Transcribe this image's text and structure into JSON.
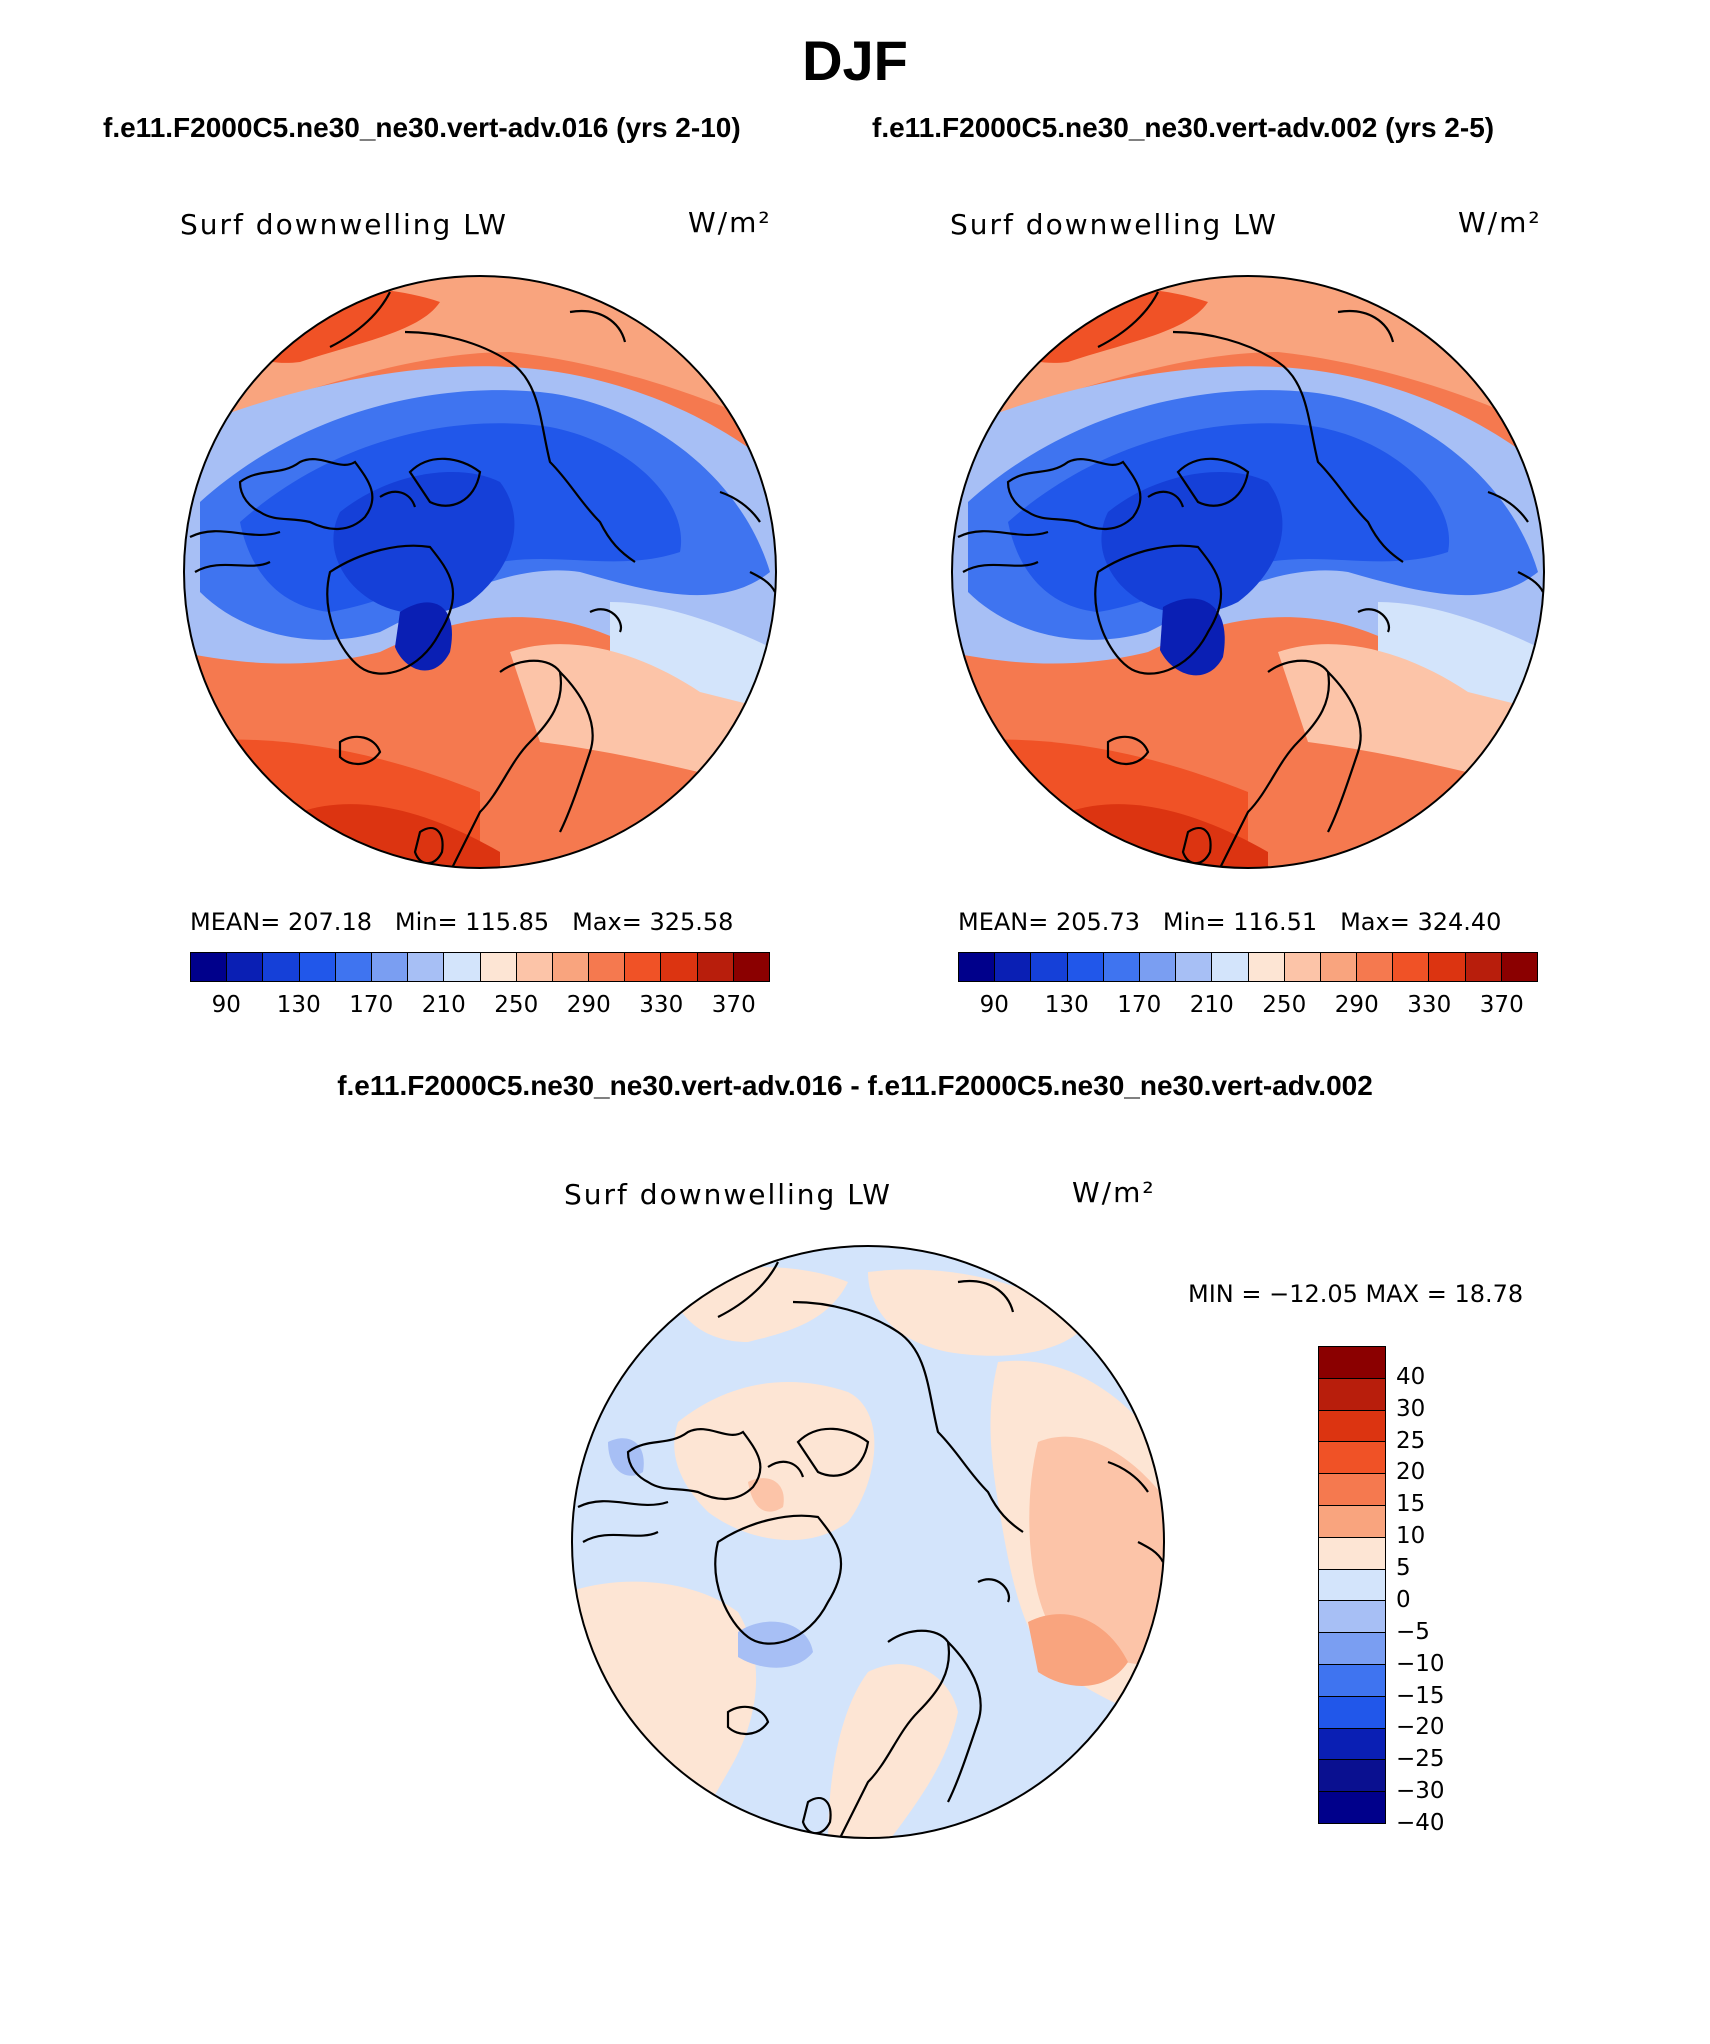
{
  "season": "DJF",
  "panels": [
    {
      "case_title": "f.e11.F2000C5.ne30_ne30.vert-adv.016 (yrs 2-10)",
      "variable": "Surf downwelling LW",
      "units": "W/m²",
      "mean_label": "MEAN=",
      "mean_value": "207.18",
      "min_label": "Min=",
      "min_value": "115.85",
      "max_label": "Max=",
      "max_value": "325.58"
    },
    {
      "case_title": "f.e11.F2000C5.ne30_ne30.vert-adv.002 (yrs 2-5)",
      "variable": "Surf downwelling LW",
      "units": "W/m²",
      "mean_label": "MEAN=",
      "mean_value": "205.73",
      "min_label": "Min=",
      "min_value": "116.51",
      "max_label": "Max=",
      "max_value": "324.40"
    }
  ],
  "diff_panel": {
    "title": "f.e11.F2000C5.ne30_ne30.vert-adv.016 - f.e11.F2000C5.ne30_ne30.vert-adv.002",
    "variable": "Surf downwelling LW",
    "units": "W/m²",
    "minmax_text": "MIN = −12.05 MAX =   18.78"
  },
  "colorbar_main": {
    "colors": [
      "#00008b",
      "#0a1fb4",
      "#1540d8",
      "#2157ea",
      "#3f74f0",
      "#7a9ef2",
      "#a7bff5",
      "#d3e4fb",
      "#fde5d4",
      "#fcc4a8",
      "#f9a47e",
      "#f5794f",
      "#f05226",
      "#dc3411",
      "#b81e0c",
      "#8b0000"
    ],
    "labels": [
      "90",
      "130",
      "170",
      "210",
      "250",
      "290",
      "330",
      "370"
    ]
  },
  "colorbar_diff": {
    "colors": [
      "#8b0000",
      "#b81e0c",
      "#dc3411",
      "#f05226",
      "#f5794f",
      "#f9a47e",
      "#fde5d4",
      "#d3e4fb",
      "#a7bff5",
      "#7a9ef2",
      "#3f74f0",
      "#2157ea",
      "#0a1fb4",
      "#0a1090",
      "#00008b"
    ],
    "labels": [
      "40",
      "30",
      "25",
      "20",
      "15",
      "10",
      "5",
      "0",
      "−5",
      "−10",
      "−15",
      "−20",
      "−25",
      "−30",
      "−40"
    ]
  }
}
